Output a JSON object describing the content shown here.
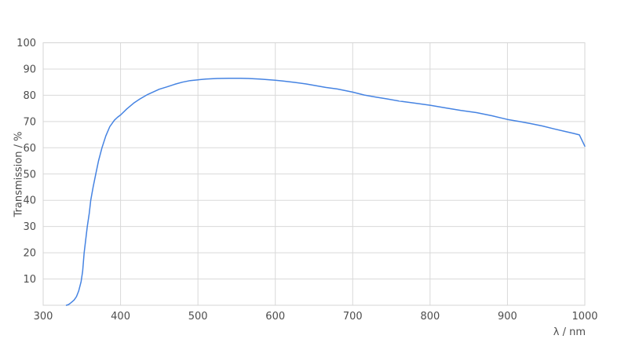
{
  "chart_data": {
    "type": "line",
    "title": "",
    "xlabel": "λ / nm",
    "ylabel": "Transmission / %",
    "xlim": [
      300,
      1000
    ],
    "ylim": [
      0,
      100
    ],
    "x_ticks": [
      300,
      400,
      500,
      600,
      700,
      800,
      900,
      1000
    ],
    "y_ticks": [
      10,
      20,
      30,
      40,
      50,
      60,
      70,
      80,
      90,
      100
    ],
    "grid": true,
    "legend_position": "none",
    "series": [
      {
        "name": "transmission",
        "color": "#4583e2",
        "x": [
          330,
          333,
          336,
          340,
          343,
          346,
          349,
          351,
          353,
          355,
          357,
          359.5,
          361.5,
          364.5,
          368,
          371.5,
          376,
          381,
          386,
          392,
          396,
          400,
          408,
          417,
          425,
          435,
          450,
          460,
          470,
          480,
          490,
          500,
          510,
          525,
          540,
          555,
          565,
          580,
          600,
          610,
          625,
          640,
          650,
          665,
          680,
          700,
          715,
          730,
          745,
          760,
          780,
          800,
          820,
          840,
          860,
          880,
          900,
          915,
          930,
          945,
          960,
          975,
          985,
          993,
          1000
        ],
        "y": [
          0,
          0.3,
          1,
          2,
          3.3,
          5.5,
          9,
          13,
          20,
          25,
          30,
          35,
          40,
          45,
          50,
          55,
          60,
          64.5,
          68,
          70.5,
          71.6,
          72.5,
          74.8,
          77,
          78.6,
          80.3,
          82.3,
          83.2,
          84.2,
          85,
          85.6,
          85.9,
          86.2,
          86.4,
          86.5,
          86.5,
          86.4,
          86.2,
          85.7,
          85.4,
          84.9,
          84.3,
          83.8,
          83,
          82.4,
          81.2,
          80.1,
          79.3,
          78.6,
          77.8,
          77,
          76.2,
          75.2,
          74.2,
          73.4,
          72.2,
          70.8,
          70,
          69.2,
          68.3,
          67.2,
          66.2,
          65.5,
          64.9,
          60.6
        ]
      }
    ]
  },
  "colors": {
    "background": "#ffffff",
    "grid": "#d9d9d9",
    "frame": "#d4d4d4",
    "tick_label": "#4d4d4d",
    "axis_label": "#4d4d4d",
    "line": "#4583e2"
  }
}
